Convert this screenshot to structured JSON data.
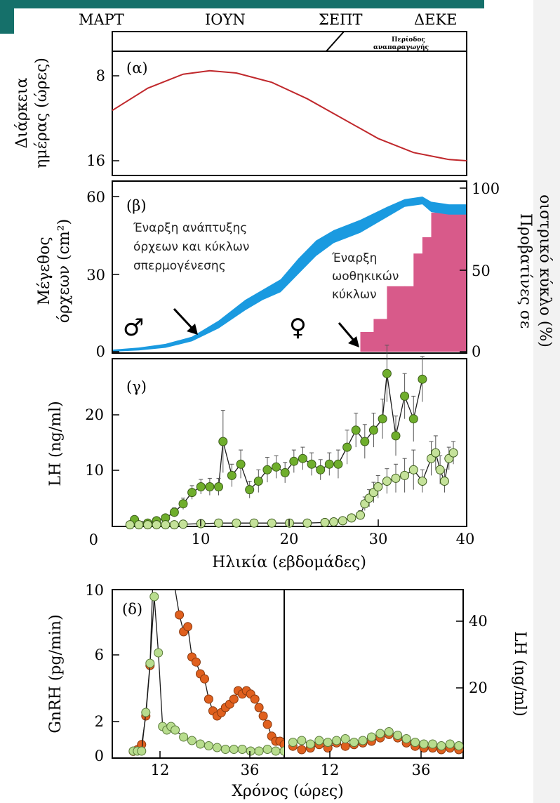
{
  "colors": {
    "teal_bar": "#15706a",
    "daylength_line": "#c0282c",
    "testis_band": "#1a9ae0",
    "ewe_bars": "#d85a8a",
    "lh_male": "#6fae2c",
    "lh_female": "#c5e29a",
    "gnrh_orange": "#e0601e",
    "gnrh_green": "#b8dd8e"
  },
  "months": [
    "ΜΑΡΤ",
    "ΙΟΥΝ",
    "ΣΕΠΤ",
    "ΔΕΚΕ"
  ],
  "breeding_season_label": [
    "Περίοδος",
    "αναπαραγωγής"
  ],
  "panels": {
    "a": "(α)",
    "b": "(β)",
    "c": "(γ)",
    "d": "(δ)"
  },
  "annotations": {
    "testis_start": [
      "Έναρξη ανάπτυξης",
      "όρχεων και κύκλων",
      "σπερμογένεσης"
    ],
    "ovulatory_start": [
      "Έναρξη",
      "ωοθηκικών",
      "κύκλων"
    ],
    "male_symbol": "♂",
    "female_symbol": "♀"
  },
  "chart_data": [
    {
      "panel": "α",
      "type": "line",
      "ylabel": [
        "Διάρκεια",
        "ημέρας (ώρες)"
      ],
      "yticks": [
        8,
        16
      ],
      "ylim": [
        16.6,
        7.0
      ],
      "xlim": [
        0,
        40
      ],
      "x": [
        0,
        4,
        8,
        11,
        14,
        18,
        22,
        26,
        30,
        34,
        38,
        40
      ],
      "values": [
        11.4,
        9.5,
        8.3,
        8.0,
        8.2,
        9.0,
        10.4,
        12.1,
        13.8,
        15.0,
        15.6,
        15.7
      ]
    },
    {
      "panel": "β",
      "type": "area",
      "ylabel": [
        "Μέγεθος",
        "όρχεων (cm²)"
      ],
      "yticks": [
        0,
        30,
        60
      ],
      "ylim": [
        0,
        60
      ],
      "xlim": [
        0,
        40
      ],
      "y2label": [
        "Προβατίνες σε",
        "οιστρικό κύκλο (%)"
      ],
      "y2ticks": [
        0,
        50,
        100
      ],
      "y2lim": [
        0,
        100
      ],
      "testis_band": {
        "x": [
          0,
          3,
          6,
          9,
          12,
          15,
          17,
          19,
          21,
          23,
          25,
          28,
          31,
          33,
          35,
          36,
          38,
          40
        ],
        "lower": [
          0,
          0.5,
          1.5,
          4,
          9,
          16,
          20,
          23,
          30,
          37,
          42,
          46,
          52,
          56,
          57,
          54,
          53,
          53
        ],
        "upper": [
          0.8,
          1.6,
          3.0,
          5.8,
          12,
          20,
          24,
          28,
          36,
          43,
          47,
          51,
          56,
          59,
          60,
          58,
          57,
          57
        ]
      },
      "ewe_steps": {
        "x": [
          28,
          29.5,
          31,
          33,
          34,
          35,
          36,
          37,
          40
        ],
        "values": [
          12,
          20,
          40,
          40,
          60,
          70,
          85,
          85,
          85
        ]
      }
    },
    {
      "panel": "γ",
      "type": "scatter",
      "ylabel": "LH (ng/ml)",
      "xlabel": "Ηλικία (εβδομάδες)",
      "xticks": [
        0,
        10,
        20,
        30,
        40
      ],
      "yticks": [
        0,
        10,
        20
      ],
      "xlim": [
        0,
        40
      ],
      "ylim": [
        0,
        29.5
      ],
      "series": [
        {
          "x": [
            2.5,
            4,
            5,
            6,
            7,
            8,
            9,
            10,
            11,
            12,
            12.5,
            13.5,
            14.5,
            15.5,
            16.5,
            17.5,
            18.5,
            19.5,
            20.5,
            21.5,
            22.5,
            23.5,
            24.5,
            25.5,
            26.5,
            27.5,
            28.5,
            29.5,
            30.5,
            31,
            32,
            33,
            34,
            35
          ],
          "values": [
            1.2,
            0.6,
            1,
            1.5,
            2.5,
            4,
            6,
            7,
            7,
            7,
            15,
            9,
            11,
            6.5,
            8,
            10,
            10.5,
            9.5,
            11.5,
            12,
            11,
            10,
            11,
            11,
            14,
            17,
            15,
            17,
            19,
            27,
            16,
            23,
            19,
            26
          ],
          "errors": [
            0.5,
            0.3,
            0.4,
            0.6,
            0.8,
            1,
            1.2,
            1.3,
            1.5,
            1.5,
            5.5,
            2,
            2.5,
            1.5,
            2,
            2.2,
            2,
            1.8,
            2,
            2,
            2,
            1.8,
            2,
            2.5,
            3,
            3,
            3,
            3,
            3.5,
            5,
            3.5,
            4,
            4,
            4
          ]
        },
        {
          "x": [
            2,
            3,
            4,
            5,
            6,
            7,
            8,
            10,
            12,
            14,
            16,
            18,
            20,
            22,
            24,
            25,
            26,
            27,
            28,
            28.5,
            29,
            29.5,
            30,
            31,
            32,
            33,
            34,
            35,
            36,
            36.5,
            37,
            37.5,
            38,
            38.5
          ],
          "values": [
            0.3,
            0.3,
            0.3,
            0.3,
            0.3,
            0.3,
            0.4,
            0.5,
            0.6,
            0.6,
            0.6,
            0.6,
            0.6,
            0.6,
            0.7,
            0.8,
            1,
            1.5,
            2,
            4,
            5,
            6,
            7,
            8,
            8.5,
            9,
            10,
            8,
            12,
            13,
            10,
            8,
            12,
            13
          ],
          "errors": [
            0.1,
            0.1,
            0.1,
            0.1,
            0.1,
            0.1,
            0.1,
            0.1,
            0.1,
            0.1,
            0.1,
            0.1,
            0.1,
            0.1,
            0.2,
            0.3,
            0.4,
            0.5,
            0.8,
            1.2,
            1.5,
            1.8,
            2,
            2.2,
            2.5,
            3,
            3.5,
            2,
            3,
            3,
            2.5,
            2,
            2,
            2
          ]
        }
      ]
    },
    {
      "panel": "δ",
      "type": "line",
      "ylabel": "GnRH (pg/min)",
      "y2label": "LH (ng/ml)",
      "xlabel": "Χρόνος (ώρες)",
      "yticks": [
        0,
        2,
        6,
        10
      ],
      "ylim": [
        0,
        10
      ],
      "y2ticks": [
        20,
        40
      ],
      "y2lim": [
        0,
        48
      ],
      "left_xticks": [
        12,
        36
      ],
      "right_xticks": [
        12,
        36
      ],
      "xlim": [
        3,
        44
      ],
      "left_series": [
        {
          "x": [
            8,
            9,
            10,
            11,
            12,
            13,
            14,
            15,
            16,
            17,
            18,
            19,
            20,
            21,
            22,
            23,
            24,
            25,
            26,
            27,
            28,
            29,
            30,
            31,
            32,
            33,
            34,
            35,
            36,
            37,
            38,
            39,
            40,
            41,
            42,
            43,
            44
          ],
          "values": [
            0.4,
            0.5,
            0.8,
            2.5,
            5.5,
            13,
            10,
            11,
            11,
            12,
            10,
            8.5,
            7.5,
            7.8,
            6,
            5.7,
            5,
            4.7,
            3.5,
            2.8,
            2.5,
            2.7,
            3,
            3.2,
            3.5,
            4,
            3.8,
            4,
            3.8,
            3.5,
            3,
            2.5,
            2,
            1.3,
            1,
            1,
            0.8
          ]
        },
        {
          "x": [
            8,
            9,
            10,
            11,
            12,
            13,
            14,
            15,
            16,
            17,
            18,
            20,
            22,
            24,
            26,
            28,
            30,
            32,
            34,
            36,
            38,
            40,
            42,
            44
          ],
          "values": [
            2,
            2,
            2,
            13,
            27,
            46,
            30,
            9,
            8,
            9,
            8,
            6,
            5,
            4,
            3.5,
            3,
            2.5,
            2.5,
            2.5,
            2,
            2,
            2.5,
            2,
            2
          ]
        }
      ],
      "right_series": [
        {
          "x": [
            5,
            7,
            9,
            11,
            13,
            15,
            17,
            19,
            21,
            23,
            25,
            27,
            29,
            31,
            33,
            35,
            37,
            39,
            41,
            43
          ],
          "values": [
            0.7,
            0.5,
            0.6,
            0.8,
            0.6,
            0.9,
            0.7,
            0.8,
            0.9,
            1,
            1.2,
            1.4,
            1.2,
            0.9,
            0.7,
            0.6,
            0.6,
            0.5,
            0.6,
            0.5
          ]
        },
        {
          "x": [
            5,
            7,
            9,
            11,
            13,
            15,
            17,
            19,
            21,
            23,
            25,
            27,
            29,
            31,
            33,
            35,
            37,
            39,
            41,
            43
          ],
          "values": [
            4.5,
            5,
            4,
            5,
            4.5,
            5,
            5.5,
            4.5,
            5,
            6,
            7,
            7.5,
            6.5,
            5.5,
            4.5,
            4,
            4,
            3.5,
            4,
            3.5
          ]
        }
      ]
    }
  ]
}
